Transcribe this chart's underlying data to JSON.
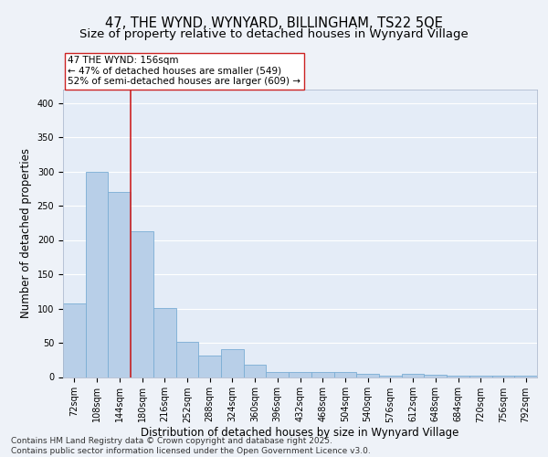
{
  "title_line1": "47, THE WYND, WYNYARD, BILLINGHAM, TS22 5QE",
  "title_line2": "Size of property relative to detached houses in Wynyard Village",
  "xlabel": "Distribution of detached houses by size in Wynyard Village",
  "ylabel": "Number of detached properties",
  "bar_color": "#b8cfe8",
  "bar_edge_color": "#7aadd4",
  "categories": [
    "72sqm",
    "108sqm",
    "144sqm",
    "180sqm",
    "216sqm",
    "252sqm",
    "288sqm",
    "324sqm",
    "360sqm",
    "396sqm",
    "432sqm",
    "468sqm",
    "504sqm",
    "540sqm",
    "576sqm",
    "612sqm",
    "648sqm",
    "684sqm",
    "720sqm",
    "756sqm",
    "792sqm"
  ],
  "values": [
    108,
    299,
    270,
    213,
    101,
    51,
    32,
    41,
    18,
    8,
    8,
    7,
    8,
    5,
    2,
    5,
    4,
    2,
    2,
    2,
    2
  ],
  "vline_color": "#cc2222",
  "annotation_text": "47 THE WYND: 156sqm\n← 47% of detached houses are smaller (549)\n52% of semi-detached houses are larger (609) →",
  "annotation_box_color": "white",
  "annotation_box_edge_color": "#cc2222",
  "ylim": [
    0,
    420
  ],
  "yticks": [
    0,
    50,
    100,
    150,
    200,
    250,
    300,
    350,
    400
  ],
  "bg_color": "#eef2f8",
  "plot_bg_color": "#e4ecf7",
  "grid_color": "white",
  "title_fontsize": 10.5,
  "subtitle_fontsize": 9.5,
  "axis_label_fontsize": 8.5,
  "tick_fontsize": 7,
  "annotation_fontsize": 7.5,
  "footer_fontsize": 6.5,
  "footer": "Contains HM Land Registry data © Crown copyright and database right 2025.\nContains public sector information licensed under the Open Government Licence v3.0."
}
